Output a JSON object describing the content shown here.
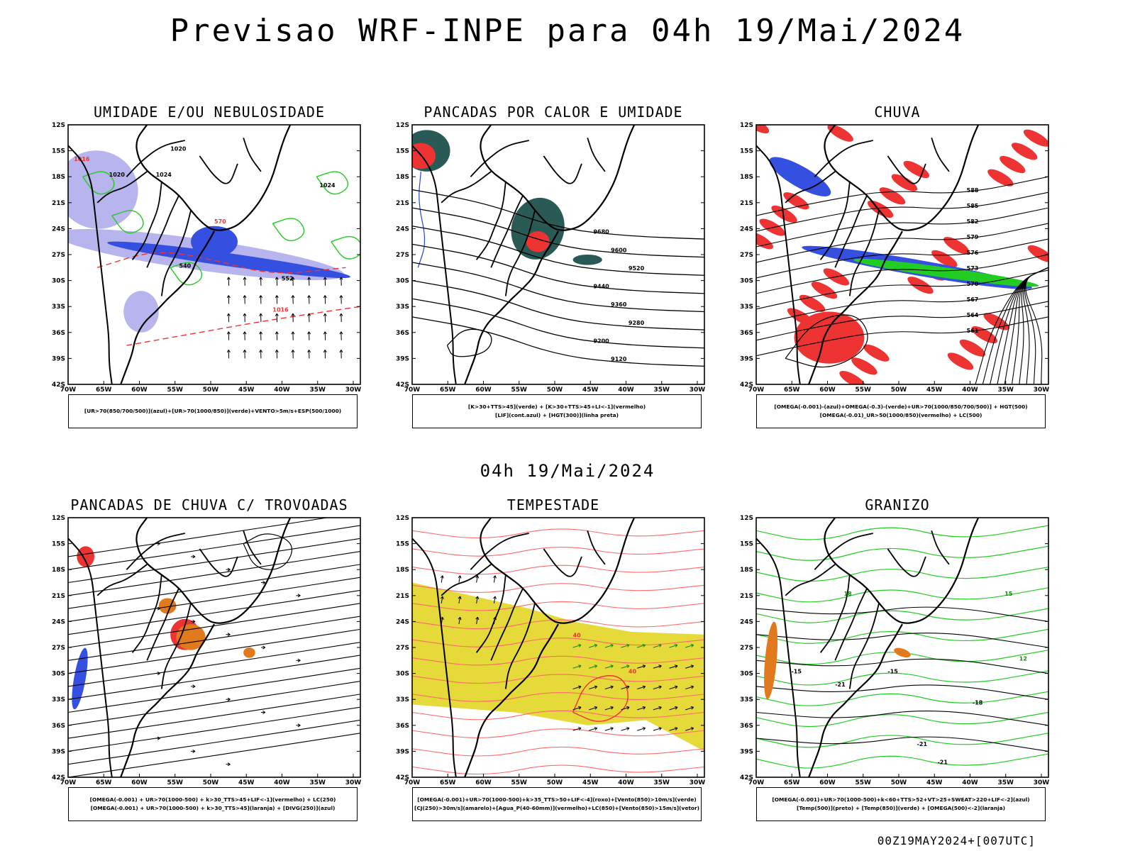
{
  "header": {
    "title": "Previsao WRF-INPE  para 04h 19/Mai/2024",
    "mid_date": "04h 19/Mai/2024",
    "footer": "00Z19MAY2024+[007UTC]"
  },
  "axes": {
    "lat_labels": [
      "12S",
      "15S",
      "18S",
      "21S",
      "24S",
      "27S",
      "30S",
      "33S",
      "36S",
      "39S",
      "42S"
    ],
    "lon_labels": [
      "70W",
      "65W",
      "60W",
      "55W",
      "50W",
      "45W",
      "40W",
      "35W",
      "30W"
    ]
  },
  "panels": [
    {
      "title": "UMIDADE E/OU NEBULOSIDADE",
      "legend": [
        "[UR>70(850/700/500)](azul)+[UR>70(1000/850)](verde)+VENTO>5m/s+ESP(500/1000)"
      ],
      "labels": [
        "1016",
        "1020",
        "1024",
        "570",
        "540",
        "552",
        "1016",
        "1020",
        "1024"
      ]
    },
    {
      "title": "PANCADAS POR CALOR E UMIDADE",
      "legend": [
        "[K>30+TTS>45](verde) + [K>30+TTS>45+LI<-1](vermelho)",
        "[LIF](cont.azul) + [HGT(300)](linha preta)"
      ],
      "labels": [
        "9680",
        "9600",
        "9520",
        "9440",
        "9360",
        "9280",
        "9200",
        "9120"
      ]
    },
    {
      "title": "CHUVA",
      "legend": [
        "[OMEGA(-0.001)-(azul)+OMEGA(-0.3)-(verde)+UR>70(1000/850/700/500)] + HGT(500)",
        "[OMEGA(-0.01)_UR>50(1000/850)(vermelho) + LC(500)"
      ],
      "labels": [
        "588",
        "585",
        "582",
        "579",
        "576",
        "573",
        "570",
        "567",
        "564",
        "561"
      ]
    },
    {
      "title": "PANCADAS DE CHUVA C/ TROVOADAS",
      "legend": [
        "[OMEGA(-0.001) + UR>70(1000-500) + k>30_TTS>45+LIF<-1](vermelho) + LC(250)",
        "[OMEGA(-0.001) + UR>70(1000-500) + k>30_TTS>45](laranja) + [DIVG(250)](azul)"
      ],
      "labels": []
    },
    {
      "title": "TEMPESTADE",
      "legend": [
        "[OMEGA(-0.001)+UR>70(1000-500)+k>35_TTS>50+LIF<-4](roxo)+[Vento(850)>10m/s](verde)",
        "[CJ(250)>30m/s](amarelo)+[Agua_P(40-60mm)](vermelho)+LC(850)+[Vento(850)>15m/s](vetor)"
      ],
      "labels": [
        "40",
        "40"
      ]
    },
    {
      "title": "GRANIZO",
      "legend": [
        "[OMEGA(-0.001)+UR>70(1000-500)+k<60+TTS>52+VT>25+SWEAT>220+LIF<-2](azul)",
        "[Temp(500)](preto) + [Temp(850)](verde) + [OMEGA(500)<-2](laranja)"
      ],
      "labels": [
        "-15",
        "-15",
        "-18",
        "-21",
        "-21",
        "-21",
        "12",
        "15",
        "18"
      ]
    }
  ],
  "colors": {
    "blue": "#3550e0",
    "lavender": "#b7b4ee",
    "green": "#22cc22",
    "red": "#ee3333",
    "dark_green": "#2a5a55",
    "orange": "#e07a1c",
    "yellow": "#e6d93a",
    "salmon": "#ff6a6a"
  }
}
